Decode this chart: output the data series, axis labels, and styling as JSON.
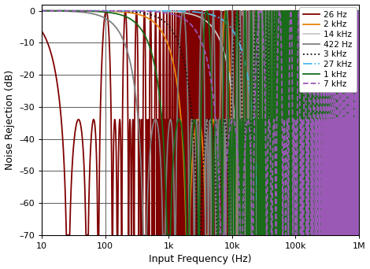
{
  "xlabel": "Input Frequency (Hz)",
  "ylabel": "Noise Rejection (dB)",
  "ylim": [
    -70,
    2
  ],
  "ytick_vals": [
    0,
    -10,
    -20,
    -30,
    -40,
    -50,
    -60,
    -70
  ],
  "ytick_labels": [
    "0",
    "–10",
    "–20",
    "–30",
    "–40",
    "–50",
    "–60",
    "–70"
  ],
  "xtick_vals": [
    10,
    100,
    1000,
    10000,
    100000,
    1000000
  ],
  "xtick_labels": [
    "10",
    "100",
    "1k",
    "10k",
    "100k",
    "1M"
  ],
  "filters": [
    {
      "label": "26 Hz",
      "color": "#800000",
      "linestyle": "-",
      "fc": 26,
      "fmod_mult": 4.0,
      "order": 3
    },
    {
      "label": "2 kHz",
      "color": "#e8820a",
      "linestyle": "-",
      "fc": 2000,
      "fmod_mult": 4.0,
      "order": 3
    },
    {
      "label": "14 kHz",
      "color": "#c8c8c8",
      "linestyle": "-",
      "fc": 14000,
      "fmod_mult": 4.0,
      "order": 3
    },
    {
      "label": "422 Hz",
      "color": "#808080",
      "linestyle": "-",
      "fc": 422,
      "fmod_mult": 4.0,
      "order": 3
    },
    {
      "label": "3 kHz",
      "color": "#101010",
      "linestyle": ":",
      "fc": 3000,
      "fmod_mult": 4.0,
      "order": 3
    },
    {
      "label": "27 kHz",
      "color": "#4db8e8",
      "linestyle": "-.",
      "fc": 27000,
      "fmod_mult": 4.0,
      "order": 3
    },
    {
      "label": "1 kHz",
      "color": "#1a6b1a",
      "linestyle": "-",
      "fc": 1000,
      "fmod_mult": 4.0,
      "order": 3
    },
    {
      "label": "7 kHz",
      "color": "#9b59b6",
      "linestyle": "--",
      "fc": 7000,
      "fmod_mult": 4.0,
      "order": 3
    }
  ],
  "legend_order": [
    0,
    1,
    2,
    3,
    4,
    5,
    6,
    7
  ],
  "background_color": "#ffffff",
  "figsize": [
    4.7,
    3.42
  ],
  "dpi": 100
}
